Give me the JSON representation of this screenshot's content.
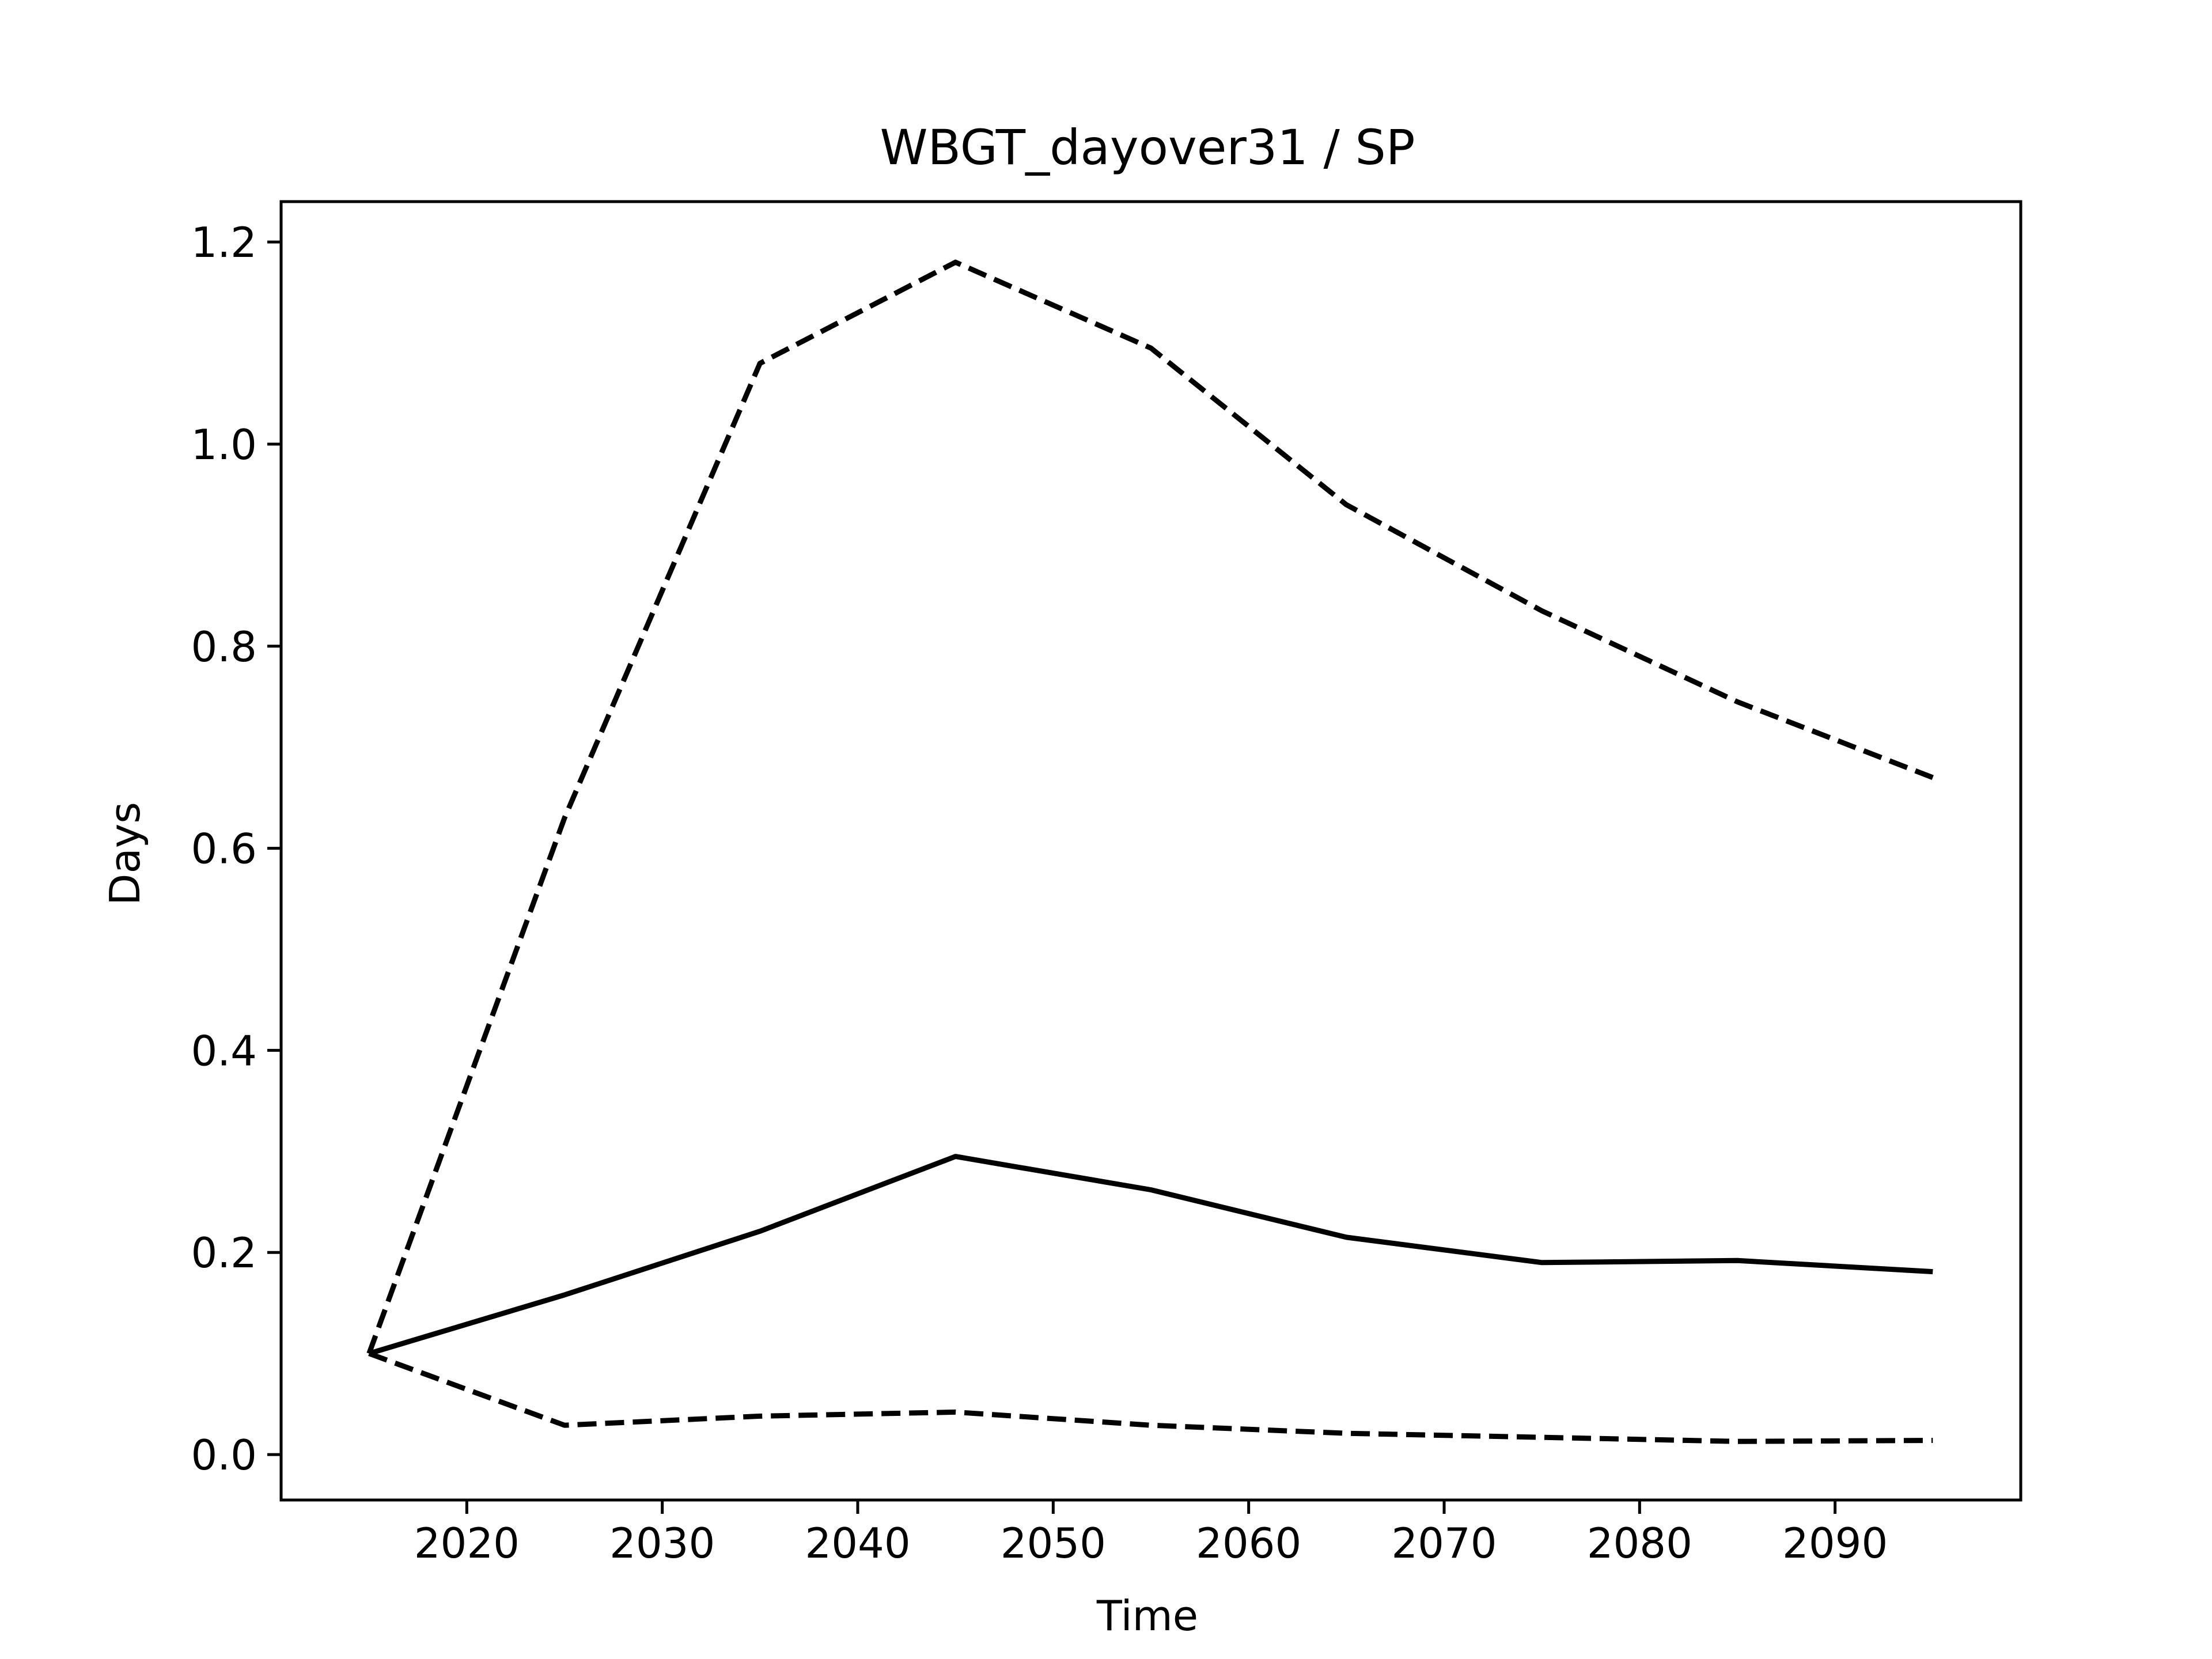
{
  "chart_data": {
    "type": "line",
    "title": "WBGT_dayover31 / SP",
    "xlabel": "Time",
    "ylabel": "Days",
    "xlim": [
      2010.5,
      2099.5
    ],
    "ylim": [
      -0.045,
      1.24
    ],
    "xticks": [
      2020,
      2030,
      2040,
      2050,
      2060,
      2070,
      2080,
      2090
    ],
    "yticks": [
      0.0,
      0.2,
      0.4,
      0.6,
      0.8,
      1.0,
      1.2
    ],
    "ytick_labels": [
      "0.0",
      "0.2",
      "0.4",
      "0.6",
      "0.8",
      "1.0",
      "1.2"
    ],
    "grid": false,
    "legend": false,
    "x": [
      2015,
      2025,
      2035,
      2045,
      2055,
      2065,
      2075,
      2085,
      2095
    ],
    "series": [
      {
        "style": "dashed",
        "color": "#000000",
        "values": [
          0.1,
          0.63,
          1.08,
          1.18,
          1.095,
          0.94,
          0.835,
          0.745,
          0.67
        ]
      },
      {
        "style": "solid",
        "color": "#000000",
        "values": [
          0.1,
          0.158,
          0.221,
          0.295,
          0.262,
          0.215,
          0.19,
          0.192,
          0.181
        ]
      },
      {
        "style": "dashed",
        "color": "#000000",
        "values": [
          0.1,
          0.029,
          0.038,
          0.042,
          0.029,
          0.021,
          0.017,
          0.013,
          0.014
        ]
      }
    ]
  }
}
